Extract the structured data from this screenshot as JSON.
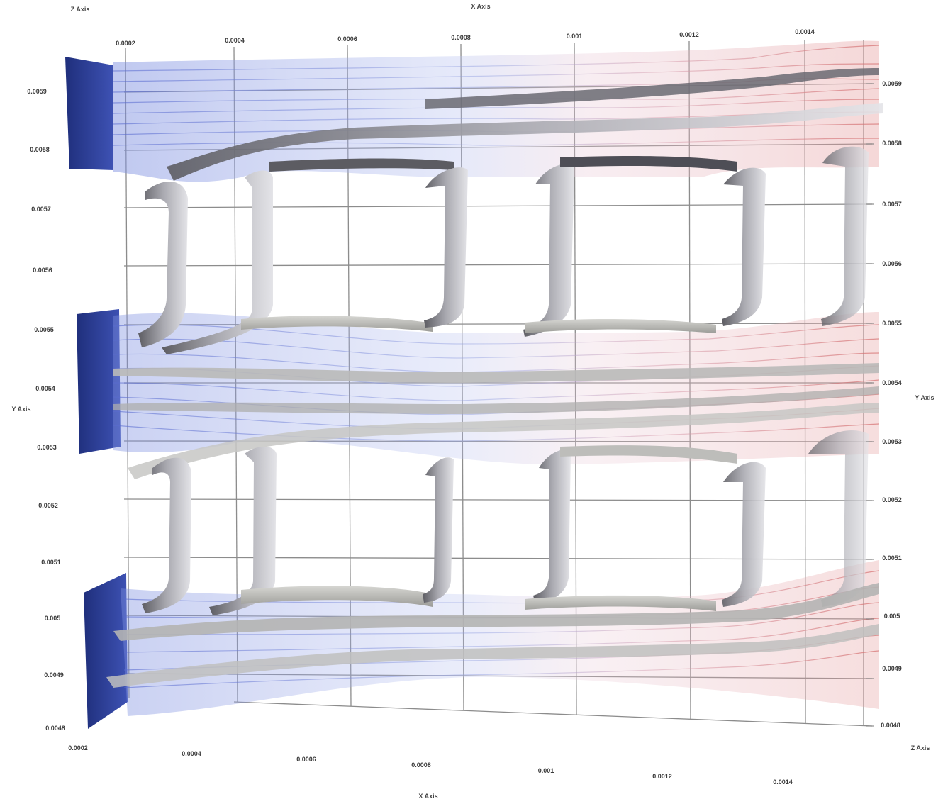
{
  "axis_titles": {
    "z_top": "Z Axis",
    "x_top": "X Axis",
    "y_left": "Y Axis",
    "y_right": "Y Axis",
    "z_bottom": "Z Axis",
    "x_bottom": "X Axis"
  },
  "x_top_ticks": [
    "0.0002",
    "0.0004",
    "0.0006",
    "0.0008",
    "0.001",
    "0.0012",
    "0.0014"
  ],
  "x_bottom_ticks": [
    "0.0002",
    "0.0004",
    "0.0006",
    "0.0008",
    "0.001",
    "0.0012",
    "0.0014"
  ],
  "y_left_ticks": [
    "0.0059",
    "0.0058",
    "0.0057",
    "0.0056",
    "0.0055",
    "0.0054",
    "0.0053",
    "0.0052",
    "0.0051",
    "0.005",
    "0.0049",
    "0.0048"
  ],
  "y_right_ticks": [
    "0.0059",
    "0.0058",
    "0.0057",
    "0.0056",
    "0.0055",
    "0.0054",
    "0.0053",
    "0.0052",
    "0.0051",
    "0.005",
    "0.0049",
    "0.0048"
  ],
  "colors": {
    "inlet": "#283a8c",
    "cool": "#8a9ae6",
    "warm": "#e4a0a0",
    "wall": "#6e6e74",
    "grid": "#8a8a8a"
  }
}
